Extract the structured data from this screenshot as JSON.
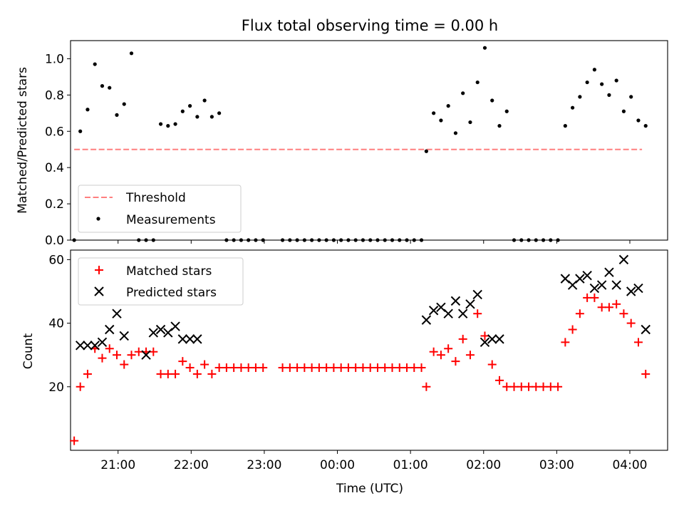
{
  "chart_data": [
    {
      "type": "scatter",
      "title": "Flux total observing time = 0.00 h",
      "xlabel": "",
      "ylabel": "Matched/Predicted stars",
      "ylim": [
        0,
        1.1
      ],
      "yticks": [
        "0.0",
        "0.2",
        "0.4",
        "0.6",
        "0.8",
        "1.0"
      ],
      "xlim": [
        "20:21",
        "04:31"
      ],
      "legend": {
        "placement": "lower-left"
      },
      "series": [
        {
          "name": "Threshold",
          "kind": "line",
          "color": "#ff7f7f",
          "x": [
            "20:24",
            "04:10"
          ],
          "y": [
            0.5,
            0.5
          ]
        },
        {
          "name": "Measurements",
          "kind": "scatter",
          "color": "#000000",
          "x": [
            "20:24",
            "20:29",
            "20:35",
            "20:41",
            "20:47",
            "20:53",
            "20:59",
            "21:05",
            "21:11",
            "21:17",
            "21:23",
            "21:29",
            "21:35",
            "21:41",
            "21:47",
            "21:53",
            "21:59",
            "22:05",
            "22:11",
            "22:17",
            "22:23",
            "22:29",
            "22:35",
            "22:41",
            "22:47",
            "22:53",
            "22:59",
            "23:15",
            "23:21",
            "23:27",
            "23:33",
            "23:39",
            "23:45",
            "23:51",
            "23:57",
            "00:03",
            "00:09",
            "00:15",
            "00:21",
            "00:27",
            "00:33",
            "00:39",
            "00:45",
            "00:51",
            "00:57",
            "01:03",
            "01:09",
            "01:13",
            "01:19",
            "01:25",
            "01:31",
            "01:37",
            "01:43",
            "01:49",
            "01:55",
            "02:01",
            "02:07",
            "02:13",
            "02:19",
            "02:25",
            "02:31",
            "02:37",
            "02:43",
            "02:49",
            "02:55",
            "03:01",
            "03:07",
            "03:13",
            "03:19",
            "03:25",
            "03:31",
            "03:37",
            "03:43",
            "03:49",
            "03:55",
            "04:01",
            "04:07",
            "04:13"
          ],
          "y": [
            0.0,
            0.6,
            0.72,
            0.97,
            0.85,
            0.84,
            0.69,
            0.75,
            1.03,
            0.0,
            0.0,
            0.0,
            0.64,
            0.63,
            0.64,
            0.71,
            0.74,
            0.68,
            0.77,
            0.68,
            0.7,
            0.0,
            0.0,
            0.0,
            0.0,
            0.0,
            0.0,
            0.0,
            0.0,
            0.0,
            0.0,
            0.0,
            0.0,
            0.0,
            0.0,
            0.0,
            0.0,
            0.0,
            0.0,
            0.0,
            0.0,
            0.0,
            0.0,
            0.0,
            0.0,
            0.0,
            0.0,
            0.49,
            0.7,
            0.66,
            0.74,
            0.59,
            0.81,
            0.65,
            0.87,
            1.06,
            0.77,
            0.63,
            0.71,
            0.0,
            0.0,
            0.0,
            0.0,
            0.0,
            0.0,
            0.0,
            0.63,
            0.73,
            0.79,
            0.87,
            0.94,
            0.86,
            0.8,
            0.88,
            0.71,
            0.79,
            0.66,
            0.63
          ]
        }
      ]
    },
    {
      "type": "scatter",
      "title": "",
      "xlabel": "Time (UTC)",
      "ylabel": "Count",
      "ylim": [
        0,
        63
      ],
      "yticks": [
        "20",
        "40",
        "60"
      ],
      "xticks": [
        "21:00",
        "22:00",
        "23:00",
        "00:00",
        "01:00",
        "02:00",
        "03:00",
        "04:00"
      ],
      "legend": {
        "placement": "top-left"
      },
      "series": [
        {
          "name": "Matched stars",
          "marker": "plus",
          "color": "#ff0000",
          "x": [
            "20:24",
            "20:29",
            "20:35",
            "20:41",
            "20:47",
            "20:53",
            "20:59",
            "21:05",
            "21:11",
            "21:17",
            "21:23",
            "21:29",
            "21:35",
            "21:41",
            "21:47",
            "21:53",
            "21:59",
            "22:05",
            "22:11",
            "22:17",
            "22:23",
            "22:29",
            "22:35",
            "22:41",
            "22:47",
            "22:53",
            "22:59",
            "23:15",
            "23:21",
            "23:27",
            "23:33",
            "23:39",
            "23:45",
            "23:51",
            "23:57",
            "00:03",
            "00:09",
            "00:15",
            "00:21",
            "00:27",
            "00:33",
            "00:39",
            "00:45",
            "00:51",
            "00:57",
            "01:03",
            "01:09",
            "01:13",
            "01:19",
            "01:25",
            "01:31",
            "01:37",
            "01:43",
            "01:49",
            "01:55",
            "02:01",
            "02:07",
            "02:13",
            "02:19",
            "02:25",
            "02:31",
            "02:37",
            "02:43",
            "02:49",
            "02:55",
            "03:01",
            "03:07",
            "03:13",
            "03:19",
            "03:25",
            "03:31",
            "03:37",
            "03:43",
            "03:49",
            "03:55",
            "04:01",
            "04:07",
            "04:13"
          ],
          "y": [
            3,
            20,
            24,
            32,
            29,
            32,
            30,
            27,
            30,
            31,
            31,
            31,
            24,
            24,
            24,
            28,
            26,
            24,
            27,
            24,
            26,
            26,
            26,
            26,
            26,
            26,
            26,
            26,
            26,
            26,
            26,
            26,
            26,
            26,
            26,
            26,
            26,
            26,
            26,
            26,
            26,
            26,
            26,
            26,
            26,
            26,
            26,
            20,
            31,
            30,
            32,
            28,
            35,
            30,
            43,
            36,
            27,
            22,
            20,
            20,
            20,
            20,
            20,
            20,
            20,
            20,
            34,
            38,
            43,
            48,
            48,
            45,
            45,
            46,
            43,
            40,
            34,
            24
          ]
        },
        {
          "name": "Predicted stars",
          "marker": "x",
          "color": "#000000",
          "x": [
            "20:29",
            "20:35",
            "20:41",
            "20:47",
            "20:53",
            "20:59",
            "21:05",
            "21:23",
            "21:29",
            "21:35",
            "21:41",
            "21:47",
            "21:53",
            "21:59",
            "22:05",
            "01:13",
            "01:19",
            "01:25",
            "01:31",
            "01:37",
            "01:43",
            "01:49",
            "01:55",
            "02:01",
            "02:07",
            "02:13",
            "03:07",
            "03:13",
            "03:19",
            "03:25",
            "03:31",
            "03:37",
            "03:43",
            "03:49",
            "03:55",
            "04:01",
            "04:07",
            "04:13"
          ],
          "y": [
            33,
            33,
            33,
            34,
            38,
            43,
            36,
            30,
            37,
            38,
            37,
            39,
            35,
            35,
            35,
            41,
            44,
            45,
            43,
            47,
            43,
            46,
            49,
            34,
            35,
            35,
            54,
            52,
            54,
            55,
            51,
            52,
            56,
            52,
            60,
            50,
            51,
            38
          ]
        }
      ]
    }
  ]
}
